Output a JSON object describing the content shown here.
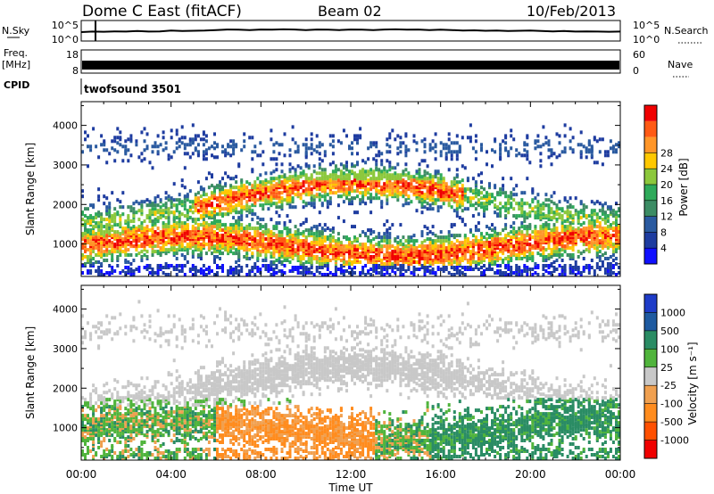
{
  "chart_data": [
    {
      "type": "line",
      "name": "sky-noise-panel",
      "header": {
        "station": "Dome C East (fitACF)",
        "beam": "Beam 02",
        "date": "10/Feb/2013"
      },
      "left_labels": [
        "N.Sky"
      ],
      "right_labels": [
        "N.Search"
      ],
      "left_ticks": [
        "10^5",
        "10^0"
      ],
      "right_ticks": [
        "10^5",
        "10^0"
      ],
      "series": [
        {
          "values_description_none": "",
          "x": [
            0,
            0.5,
            1,
            1.5,
            2,
            2.5,
            3,
            3.5,
            4,
            4.5,
            5,
            5.5,
            6,
            6.5,
            7,
            7.5,
            8,
            8.5,
            9,
            9.5,
            10,
            10.5,
            11,
            11.5,
            12,
            12.5,
            13,
            13.5,
            14,
            14.5,
            15,
            15.5,
            16,
            16.5,
            17,
            17.5,
            18,
            18.5,
            19,
            19.5,
            20,
            20.5,
            21,
            21.5,
            22,
            22.5,
            23,
            23.5,
            24
          ],
          "y": [
            0.35,
            0.4,
            0.38,
            0.42,
            0.4,
            0.45,
            0.4,
            0.42,
            0.5,
            0.45,
            0.48,
            0.5,
            0.55,
            0.6,
            0.58,
            0.55,
            0.6,
            0.58,
            0.62,
            0.6,
            0.55,
            0.6,
            0.58,
            0.55,
            0.6,
            0.58,
            0.55,
            0.6,
            0.62,
            0.58,
            0.6,
            0.55,
            0.58,
            0.55,
            0.5,
            0.52,
            0.48,
            0.5,
            0.45,
            0.48,
            0.5,
            0.45,
            0.42,
            0.45,
            0.4,
            0.42,
            0.4,
            0.38,
            0.4
          ]
        }
      ]
    },
    {
      "type": "bar",
      "name": "frequency-panel",
      "left_labels": [
        "Freq.",
        "[MHz]",
        "CPID"
      ],
      "right_labels": [
        "Nave"
      ],
      "left_ticks": [
        "18",
        "8"
      ],
      "right_ticks": [
        "60",
        "0"
      ],
      "program": "twofsound 3501"
    },
    {
      "type": "heatmap",
      "name": "power-panel",
      "ylabel": "Slant Range [km]",
      "ylim": [
        180,
        4600
      ],
      "yticks": [
        1000,
        2000,
        3000,
        4000
      ],
      "colorbar_label": "Power [dB]",
      "colorbar_ticks": [
        "4",
        "8",
        "12",
        "16",
        "20",
        "24",
        "28"
      ],
      "colors": [
        "#1010ff",
        "#1e3ca0",
        "#2a5aa0",
        "#3c8c64",
        "#2eaa5a",
        "#8cc83c",
        "#ffc800",
        "#ff9628",
        "#ff5a14",
        "#f00000"
      ]
    },
    {
      "type": "heatmap",
      "name": "velocity-panel",
      "ylabel": "Slant Range [km]",
      "ylim": [
        180,
        4600
      ],
      "yticks": [
        1000,
        2000,
        3000,
        4000
      ],
      "xlabel": "Time UT",
      "xticks": [
        "00:00",
        "04:00",
        "08:00",
        "12:00",
        "16:00",
        "20:00",
        "00:00"
      ],
      "colorbar_label": "Velocity [m s⁻¹]",
      "colorbar_ticks": [
        "1000",
        "500",
        "100",
        "25",
        "-25",
        "-100",
        "-500",
        "-1000"
      ],
      "colors": [
        "#1e3cc8",
        "#1e5aa0",
        "#2a8c64",
        "#50b43c",
        "#c8c8c8",
        "#f0a050",
        "#ff8c1e",
        "#ff5000",
        "#f00000"
      ]
    }
  ]
}
